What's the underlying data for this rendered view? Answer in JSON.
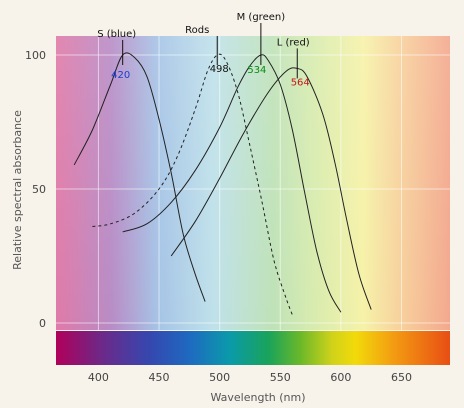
{
  "chart_data": {
    "type": "line",
    "title": "",
    "xlabel": "Wavelength (nm)",
    "ylabel": "Relative spectral absorbance",
    "xlim": [
      365,
      690
    ],
    "ylim": [
      0,
      100
    ],
    "xticks": [
      "400",
      "450",
      "500",
      "550",
      "600",
      "650"
    ],
    "yticks": [
      "0",
      "50",
      "100"
    ],
    "grid": true,
    "background": "visible spectrum gradient",
    "series": [
      {
        "name": "S (blue)",
        "peak": "420",
        "peak_value": 420,
        "color": "#222222",
        "peak_color": "#1a3fd0",
        "dashed": false,
        "points": [
          [
            380,
            59
          ],
          [
            395,
            72
          ],
          [
            410,
            89
          ],
          [
            420,
            100
          ],
          [
            430,
            99
          ],
          [
            440,
            92
          ],
          [
            450,
            76
          ],
          [
            460,
            56
          ],
          [
            470,
            33
          ],
          [
            480,
            18
          ],
          [
            488,
            8
          ]
        ]
      },
      {
        "name": "Rods",
        "peak": "498",
        "peak_value": 498,
        "color": "#222222",
        "peak_color": "#111111",
        "dashed": true,
        "points": [
          [
            395,
            36
          ],
          [
            410,
            37
          ],
          [
            430,
            41
          ],
          [
            450,
            50
          ],
          [
            465,
            62
          ],
          [
            480,
            80
          ],
          [
            490,
            94
          ],
          [
            498,
            100
          ],
          [
            505,
            98
          ],
          [
            515,
            86
          ],
          [
            525,
            66
          ],
          [
            535,
            45
          ],
          [
            545,
            23
          ],
          [
            555,
            9
          ],
          [
            560,
            3
          ]
        ]
      },
      {
        "name": "M (green)",
        "peak": "534",
        "peak_value": 534,
        "color": "#222222",
        "peak_color": "#0a8a12",
        "dashed": false,
        "points": [
          [
            420,
            34
          ],
          [
            440,
            37
          ],
          [
            460,
            45
          ],
          [
            480,
            57
          ],
          [
            500,
            73
          ],
          [
            515,
            88
          ],
          [
            525,
            96
          ],
          [
            534,
            100
          ],
          [
            540,
            98
          ],
          [
            550,
            89
          ],
          [
            560,
            72
          ],
          [
            570,
            49
          ],
          [
            580,
            27
          ],
          [
            590,
            12
          ],
          [
            600,
            4
          ]
        ]
      },
      {
        "name": "L (red)",
        "peak": "564",
        "peak_value": 564,
        "color": "#222222",
        "peak_color": "#c21a1a",
        "dashed": false,
        "points": [
          [
            460,
            25
          ],
          [
            480,
            38
          ],
          [
            500,
            54
          ],
          [
            520,
            71
          ],
          [
            540,
            86
          ],
          [
            555,
            94
          ],
          [
            564,
            95
          ],
          [
            572,
            92
          ],
          [
            585,
            78
          ],
          [
            595,
            60
          ],
          [
            605,
            38
          ],
          [
            615,
            18
          ],
          [
            625,
            5
          ]
        ]
      }
    ]
  }
}
